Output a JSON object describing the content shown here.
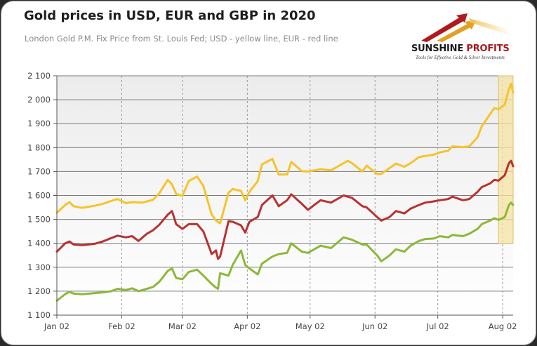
{
  "header": {
    "title": "Gold prices in USD, EUR and GBP in 2020",
    "subtitle": "London Gold P.M. Fix Price from St. Louis Fed; USD - yellow line, EUR - red line"
  },
  "logo": {
    "name_part1": "SUNSHINE",
    "name_part2": " PROFITS",
    "tagline": "Tools for Effective Gold & Silver Investments",
    "icon": "rising-arrows-logo-icon"
  },
  "colors": {
    "usd": "#f5c42b",
    "eur": "#b83232",
    "gbp": "#8db83a",
    "highlight": "#f6e3a3",
    "highlight_border": "#e2c060",
    "plot_bg_top": "#ececec",
    "plot_bg_bottom": "#ffffff"
  },
  "chart_data": {
    "type": "line",
    "x_ticks": [
      "Jan 02",
      "Feb 02",
      "Mar 02",
      "Apr 02",
      "May 02",
      "Jun 02",
      "Jul 02",
      "Aug 02"
    ],
    "y_ticks": [
      "1 100",
      "1 200",
      "1 300",
      "1 400",
      "1 500",
      "1 600",
      "1 700",
      "1 800",
      "1 900",
      "2 000",
      "2 100"
    ],
    "ylim": [
      1100,
      2100
    ],
    "xlim": [
      "2020-01-02",
      "2020-08-07"
    ],
    "grid": true,
    "highlight_region": {
      "x": [
        "2020-07-31",
        "2020-08-07"
      ],
      "y": [
        1400,
        2100
      ]
    },
    "series": [
      {
        "key": "usd",
        "points": [
          [
            "2020-01-02",
            1528
          ],
          [
            "2020-01-06",
            1560
          ],
          [
            "2020-01-08",
            1572
          ],
          [
            "2020-01-10",
            1555
          ],
          [
            "2020-01-14",
            1548
          ],
          [
            "2020-01-20",
            1557
          ],
          [
            "2020-01-24",
            1565
          ],
          [
            "2020-01-28",
            1577
          ],
          [
            "2020-01-31",
            1585
          ],
          [
            "2020-02-04",
            1568
          ],
          [
            "2020-02-07",
            1572
          ],
          [
            "2020-02-12",
            1570
          ],
          [
            "2020-02-17",
            1582
          ],
          [
            "2020-02-20",
            1610
          ],
          [
            "2020-02-24",
            1665
          ],
          [
            "2020-02-26",
            1646
          ],
          [
            "2020-02-28",
            1606
          ],
          [
            "2020-03-02",
            1598
          ],
          [
            "2020-03-05",
            1660
          ],
          [
            "2020-03-09",
            1679
          ],
          [
            "2020-03-12",
            1640
          ],
          [
            "2020-03-16",
            1520
          ],
          [
            "2020-03-18",
            1495
          ],
          [
            "2020-03-20",
            1484
          ],
          [
            "2020-03-24",
            1611
          ],
          [
            "2020-03-26",
            1627
          ],
          [
            "2020-03-30",
            1619
          ],
          [
            "2020-04-01",
            1580
          ],
          [
            "2020-04-03",
            1615
          ],
          [
            "2020-04-07",
            1660
          ],
          [
            "2020-04-09",
            1730
          ],
          [
            "2020-04-14",
            1753
          ],
          [
            "2020-04-17",
            1687
          ],
          [
            "2020-04-21",
            1688
          ],
          [
            "2020-04-23",
            1740
          ],
          [
            "2020-04-28",
            1702
          ],
          [
            "2020-05-01",
            1700
          ],
          [
            "2020-05-04",
            1705
          ],
          [
            "2020-05-07",
            1710
          ],
          [
            "2020-05-12",
            1705
          ],
          [
            "2020-05-18",
            1735
          ],
          [
            "2020-05-20",
            1745
          ],
          [
            "2020-05-22",
            1735
          ],
          [
            "2020-05-27",
            1700
          ],
          [
            "2020-05-29",
            1725
          ],
          [
            "2020-06-03",
            1690
          ],
          [
            "2020-06-05",
            1690
          ],
          [
            "2020-06-09",
            1715
          ],
          [
            "2020-06-12",
            1733
          ],
          [
            "2020-06-16",
            1720
          ],
          [
            "2020-06-19",
            1735
          ],
          [
            "2020-06-23",
            1760
          ],
          [
            "2020-06-26",
            1765
          ],
          [
            "2020-06-30",
            1770
          ],
          [
            "2020-07-03",
            1780
          ],
          [
            "2020-07-07",
            1787
          ],
          [
            "2020-07-09",
            1805
          ],
          [
            "2020-07-14",
            1802
          ],
          [
            "2020-07-17",
            1805
          ],
          [
            "2020-07-21",
            1843
          ],
          [
            "2020-07-23",
            1889
          ],
          [
            "2020-07-27",
            1940
          ],
          [
            "2020-07-29",
            1965
          ],
          [
            "2020-07-31",
            1960
          ],
          [
            "2020-08-03",
            1980
          ],
          [
            "2020-08-05",
            2045
          ],
          [
            "2020-08-06",
            2067
          ],
          [
            "2020-08-07",
            2030
          ]
        ]
      },
      {
        "key": "eur",
        "points": [
          [
            "2020-01-02",
            1365
          ],
          [
            "2020-01-06",
            1400
          ],
          [
            "2020-01-08",
            1408
          ],
          [
            "2020-01-10",
            1395
          ],
          [
            "2020-01-14",
            1392
          ],
          [
            "2020-01-20",
            1398
          ],
          [
            "2020-01-24",
            1408
          ],
          [
            "2020-01-28",
            1422
          ],
          [
            "2020-01-31",
            1432
          ],
          [
            "2020-02-04",
            1425
          ],
          [
            "2020-02-07",
            1430
          ],
          [
            "2020-02-10",
            1410
          ],
          [
            "2020-02-14",
            1440
          ],
          [
            "2020-02-17",
            1455
          ],
          [
            "2020-02-20",
            1478
          ],
          [
            "2020-02-24",
            1520
          ],
          [
            "2020-02-26",
            1535
          ],
          [
            "2020-02-28",
            1480
          ],
          [
            "2020-03-02",
            1460
          ],
          [
            "2020-03-05",
            1480
          ],
          [
            "2020-03-09",
            1480
          ],
          [
            "2020-03-12",
            1450
          ],
          [
            "2020-03-16",
            1355
          ],
          [
            "2020-03-18",
            1370
          ],
          [
            "2020-03-19",
            1335
          ],
          [
            "2020-03-20",
            1345
          ],
          [
            "2020-03-24",
            1492
          ],
          [
            "2020-03-26",
            1490
          ],
          [
            "2020-03-30",
            1475
          ],
          [
            "2020-04-01",
            1445
          ],
          [
            "2020-04-03",
            1490
          ],
          [
            "2020-04-07",
            1510
          ],
          [
            "2020-04-09",
            1560
          ],
          [
            "2020-04-14",
            1600
          ],
          [
            "2020-04-17",
            1555
          ],
          [
            "2020-04-21",
            1580
          ],
          [
            "2020-04-23",
            1605
          ],
          [
            "2020-04-28",
            1565
          ],
          [
            "2020-05-01",
            1540
          ],
          [
            "2020-05-04",
            1560
          ],
          [
            "2020-05-07",
            1580
          ],
          [
            "2020-05-12",
            1570
          ],
          [
            "2020-05-18",
            1600
          ],
          [
            "2020-05-20",
            1595
          ],
          [
            "2020-05-22",
            1590
          ],
          [
            "2020-05-27",
            1555
          ],
          [
            "2020-05-29",
            1550
          ],
          [
            "2020-06-03",
            1510
          ],
          [
            "2020-06-05",
            1495
          ],
          [
            "2020-06-09",
            1510
          ],
          [
            "2020-06-12",
            1535
          ],
          [
            "2020-06-16",
            1525
          ],
          [
            "2020-06-19",
            1545
          ],
          [
            "2020-06-23",
            1560
          ],
          [
            "2020-06-26",
            1570
          ],
          [
            "2020-06-30",
            1575
          ],
          [
            "2020-07-03",
            1580
          ],
          [
            "2020-07-07",
            1585
          ],
          [
            "2020-07-09",
            1595
          ],
          [
            "2020-07-14",
            1580
          ],
          [
            "2020-07-17",
            1585
          ],
          [
            "2020-07-21",
            1615
          ],
          [
            "2020-07-23",
            1635
          ],
          [
            "2020-07-27",
            1650
          ],
          [
            "2020-07-29",
            1665
          ],
          [
            "2020-07-31",
            1662
          ],
          [
            "2020-08-03",
            1685
          ],
          [
            "2020-08-05",
            1735
          ],
          [
            "2020-08-06",
            1745
          ],
          [
            "2020-08-07",
            1722
          ]
        ]
      },
      {
        "key": "gbp",
        "points": [
          [
            "2020-01-02",
            1160
          ],
          [
            "2020-01-06",
            1188
          ],
          [
            "2020-01-08",
            1197
          ],
          [
            "2020-01-10",
            1190
          ],
          [
            "2020-01-14",
            1187
          ],
          [
            "2020-01-20",
            1192
          ],
          [
            "2020-01-24",
            1195
          ],
          [
            "2020-01-28",
            1200
          ],
          [
            "2020-01-31",
            1210
          ],
          [
            "2020-02-04",
            1205
          ],
          [
            "2020-02-07",
            1212
          ],
          [
            "2020-02-10",
            1200
          ],
          [
            "2020-02-14",
            1210
          ],
          [
            "2020-02-17",
            1218
          ],
          [
            "2020-02-20",
            1240
          ],
          [
            "2020-02-24",
            1285
          ],
          [
            "2020-02-26",
            1295
          ],
          [
            "2020-02-28",
            1255
          ],
          [
            "2020-03-02",
            1250
          ],
          [
            "2020-03-05",
            1280
          ],
          [
            "2020-03-09",
            1290
          ],
          [
            "2020-03-12",
            1265
          ],
          [
            "2020-03-16",
            1230
          ],
          [
            "2020-03-18",
            1215
          ],
          [
            "2020-03-19",
            1210
          ],
          [
            "2020-03-20",
            1275
          ],
          [
            "2020-03-24",
            1265
          ],
          [
            "2020-03-26",
            1310
          ],
          [
            "2020-03-30",
            1370
          ],
          [
            "2020-04-01",
            1310
          ],
          [
            "2020-04-03",
            1295
          ],
          [
            "2020-04-07",
            1270
          ],
          [
            "2020-04-09",
            1315
          ],
          [
            "2020-04-14",
            1345
          ],
          [
            "2020-04-17",
            1355
          ],
          [
            "2020-04-21",
            1360
          ],
          [
            "2020-04-23",
            1400
          ],
          [
            "2020-04-28",
            1365
          ],
          [
            "2020-05-01",
            1360
          ],
          [
            "2020-05-04",
            1375
          ],
          [
            "2020-05-07",
            1390
          ],
          [
            "2020-05-12",
            1380
          ],
          [
            "2020-05-18",
            1425
          ],
          [
            "2020-05-20",
            1420
          ],
          [
            "2020-05-22",
            1415
          ],
          [
            "2020-05-27",
            1395
          ],
          [
            "2020-05-29",
            1395
          ],
          [
            "2020-06-03",
            1350
          ],
          [
            "2020-06-05",
            1325
          ],
          [
            "2020-06-09",
            1350
          ],
          [
            "2020-06-12",
            1375
          ],
          [
            "2020-06-16",
            1365
          ],
          [
            "2020-06-19",
            1390
          ],
          [
            "2020-06-23",
            1410
          ],
          [
            "2020-06-26",
            1418
          ],
          [
            "2020-06-30",
            1420
          ],
          [
            "2020-07-03",
            1430
          ],
          [
            "2020-07-07",
            1425
          ],
          [
            "2020-07-09",
            1435
          ],
          [
            "2020-07-14",
            1430
          ],
          [
            "2020-07-17",
            1440
          ],
          [
            "2020-07-21",
            1460
          ],
          [
            "2020-07-23",
            1480
          ],
          [
            "2020-07-27",
            1495
          ],
          [
            "2020-07-29",
            1505
          ],
          [
            "2020-07-31",
            1498
          ],
          [
            "2020-08-03",
            1510
          ],
          [
            "2020-08-05",
            1560
          ],
          [
            "2020-08-06",
            1570
          ],
          [
            "2020-08-07",
            1560
          ]
        ]
      }
    ]
  }
}
